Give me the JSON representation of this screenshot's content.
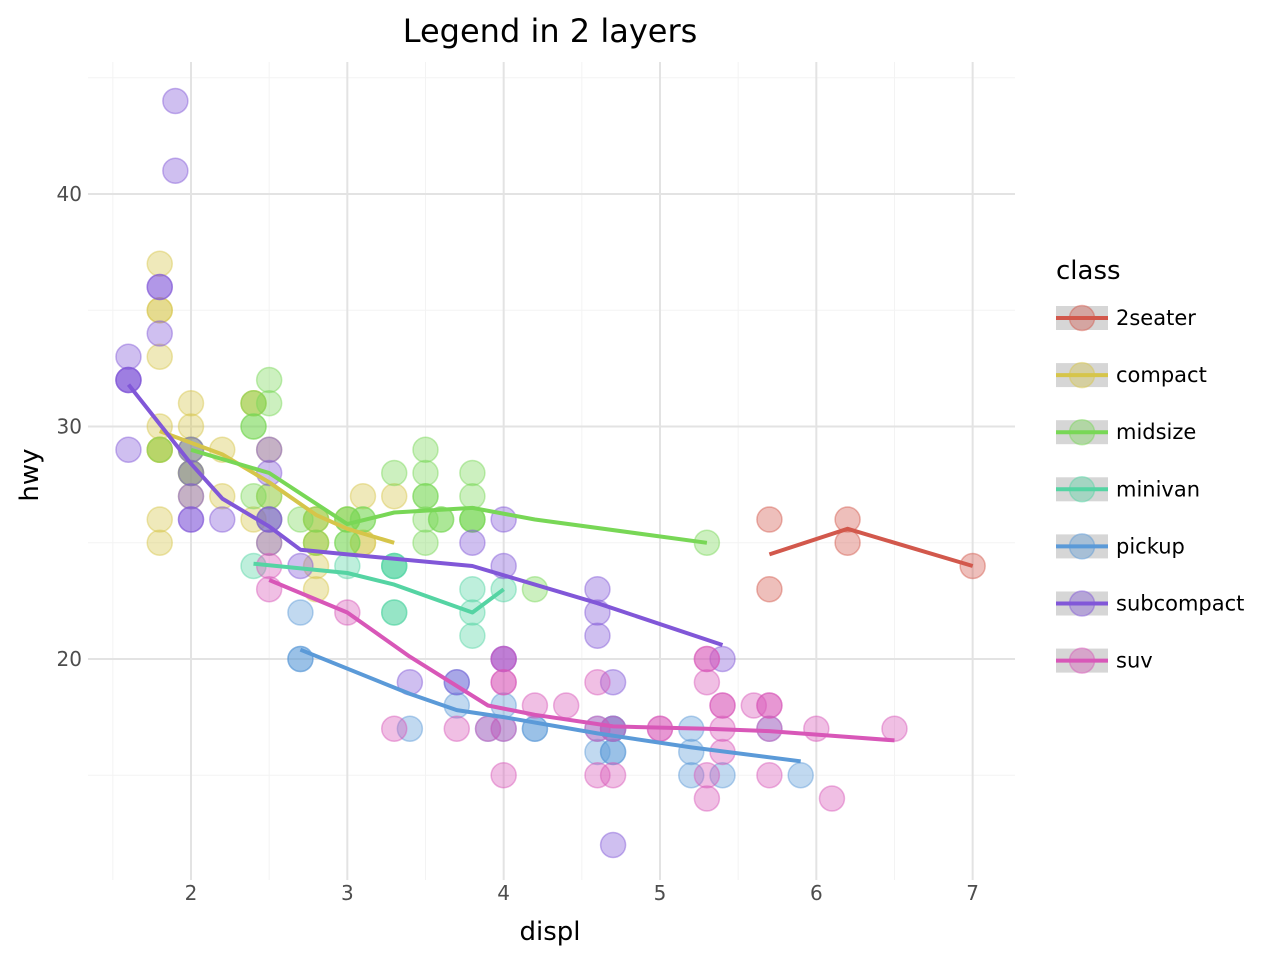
{
  "chart_data": {
    "type": "scatter",
    "title": "Legend in 2 layers",
    "xlabel": "displ",
    "ylabel": "hwy",
    "xlim": [
      1.4,
      7.3
    ],
    "ylim": [
      10.5,
      45.5
    ],
    "x_ticks": [
      2,
      3,
      4,
      5,
      6,
      7
    ],
    "y_ticks": [
      20,
      30,
      40
    ],
    "grid": true,
    "legend_title": "class",
    "legend_placement": "right",
    "series": [
      {
        "name": "2seater",
        "color": "#d2584c",
        "points": [
          [
            5.7,
            26
          ],
          [
            5.7,
            23
          ],
          [
            6.2,
            26
          ],
          [
            6.2,
            25
          ],
          [
            7.0,
            24
          ]
        ],
        "trend": [
          [
            5.7,
            24.5
          ],
          [
            6.2,
            25.6
          ],
          [
            7.0,
            24.0
          ]
        ]
      },
      {
        "name": "compact",
        "color": "#d6c54a",
        "points": [
          [
            1.8,
            29
          ],
          [
            1.8,
            29
          ],
          [
            2.0,
            31
          ],
          [
            2.0,
            30
          ],
          [
            2.8,
            26
          ],
          [
            2.8,
            26
          ],
          [
            3.1,
            27
          ],
          [
            1.8,
            26
          ],
          [
            1.8,
            25
          ],
          [
            2.0,
            28
          ],
          [
            2.0,
            27
          ],
          [
            2.8,
            25
          ],
          [
            2.8,
            25
          ],
          [
            3.1,
            25
          ],
          [
            3.1,
            25
          ],
          [
            2.2,
            29
          ],
          [
            2.2,
            27
          ],
          [
            2.4,
            31
          ],
          [
            2.4,
            31
          ],
          [
            3.0,
            26
          ],
          [
            3.3,
            27
          ],
          [
            1.8,
            29
          ],
          [
            1.8,
            30
          ],
          [
            1.8,
            33
          ],
          [
            1.8,
            35
          ],
          [
            1.8,
            37
          ],
          [
            1.8,
            35
          ],
          [
            2.5,
            29
          ],
          [
            2.5,
            27
          ],
          [
            2.5,
            25
          ],
          [
            2.8,
            24
          ],
          [
            2.8,
            23
          ],
          [
            2.0,
            29
          ],
          [
            2.0,
            28
          ],
          [
            2.4,
            26
          ]
        ],
        "trend": [
          [
            1.8,
            29.8
          ],
          [
            2.2,
            28.8
          ],
          [
            2.5,
            27.6
          ],
          [
            2.8,
            26.2
          ],
          [
            3.0,
            25.6
          ],
          [
            3.3,
            25.0
          ]
        ]
      },
      {
        "name": "midsize",
        "color": "#78d756",
        "points": [
          [
            2.4,
            27
          ],
          [
            2.4,
            30
          ],
          [
            3.1,
            26
          ],
          [
            3.5,
            29
          ],
          [
            3.6,
            26
          ],
          [
            1.8,
            29
          ],
          [
            2.0,
            28
          ],
          [
            2.0,
            29
          ],
          [
            2.5,
            26
          ],
          [
            2.5,
            32
          ],
          [
            2.5,
            31
          ],
          [
            2.8,
            26
          ],
          [
            3.0,
            26
          ],
          [
            3.0,
            25
          ],
          [
            3.3,
            28
          ],
          [
            3.5,
            27
          ],
          [
            3.5,
            26
          ],
          [
            3.8,
            26
          ],
          [
            3.8,
            28
          ],
          [
            4.2,
            23
          ],
          [
            5.3,
            25
          ],
          [
            2.4,
            31
          ],
          [
            2.8,
            25
          ],
          [
            3.1,
            26
          ],
          [
            3.5,
            25
          ],
          [
            3.8,
            27
          ],
          [
            3.8,
            26
          ],
          [
            3.5,
            28
          ],
          [
            3.6,
            26
          ],
          [
            3.8,
            26
          ],
          [
            2.4,
            30
          ],
          [
            2.7,
            26
          ],
          [
            3.0,
            26
          ],
          [
            3.5,
            27
          ],
          [
            3.0,
            25
          ],
          [
            2.5,
            27
          ]
        ],
        "trend": [
          [
            2.0,
            29.0
          ],
          [
            2.5,
            28.0
          ],
          [
            3.0,
            25.8
          ],
          [
            3.3,
            26.3
          ],
          [
            3.8,
            26.5
          ],
          [
            4.2,
            26.0
          ],
          [
            5.3,
            25.0
          ]
        ]
      },
      {
        "name": "minivan",
        "color": "#55d4a3",
        "points": [
          [
            2.4,
            24
          ],
          [
            3.0,
            24
          ],
          [
            3.3,
            22
          ],
          [
            3.3,
            22
          ],
          [
            3.3,
            24
          ],
          [
            3.3,
            24
          ],
          [
            3.3,
            24
          ],
          [
            3.8,
            22
          ],
          [
            3.8,
            21
          ],
          [
            3.8,
            23
          ],
          [
            4.0,
            23
          ]
        ],
        "trend": [
          [
            2.4,
            24.1
          ],
          [
            3.0,
            23.7
          ],
          [
            3.3,
            23.2
          ],
          [
            3.8,
            22.0
          ],
          [
            4.0,
            23.0
          ]
        ]
      },
      {
        "name": "pickup",
        "color": "#5b9ad8",
        "points": [
          [
            2.7,
            20
          ],
          [
            2.7,
            20
          ],
          [
            2.7,
            22
          ],
          [
            3.4,
            17
          ],
          [
            3.7,
            18
          ],
          [
            3.9,
            17
          ],
          [
            4.0,
            18
          ],
          [
            4.2,
            17
          ],
          [
            4.2,
            17
          ],
          [
            4.6,
            16
          ],
          [
            4.6,
            17
          ],
          [
            4.7,
            17
          ],
          [
            4.7,
            16
          ],
          [
            4.7,
            16
          ],
          [
            5.2,
            15
          ],
          [
            5.2,
            16
          ],
          [
            5.2,
            17
          ],
          [
            5.4,
            15
          ],
          [
            5.7,
            17
          ],
          [
            5.9,
            15
          ],
          [
            4.7,
            17
          ],
          [
            4.7,
            17
          ],
          [
            4.0,
            17
          ],
          [
            3.7,
            19
          ]
        ],
        "trend": [
          [
            2.7,
            20.4
          ],
          [
            3.4,
            18.5
          ],
          [
            3.7,
            17.8
          ],
          [
            4.0,
            17.5
          ],
          [
            4.6,
            16.8
          ],
          [
            5.2,
            16.2
          ],
          [
            5.9,
            15.6
          ]
        ]
      },
      {
        "name": "subcompact",
        "color": "#8157d8",
        "points": [
          [
            1.6,
            33
          ],
          [
            1.6,
            32
          ],
          [
            1.6,
            32
          ],
          [
            1.6,
            29
          ],
          [
            1.6,
            32
          ],
          [
            1.8,
            34
          ],
          [
            1.8,
            36
          ],
          [
            1.8,
            36
          ],
          [
            2.0,
            29
          ],
          [
            2.0,
            26
          ],
          [
            2.0,
            27
          ],
          [
            2.0,
            26
          ],
          [
            2.2,
            26
          ],
          [
            2.5,
            26
          ],
          [
            2.5,
            28
          ],
          [
            2.5,
            29
          ],
          [
            2.7,
            24
          ],
          [
            3.4,
            19
          ],
          [
            3.8,
            25
          ],
          [
            4.0,
            24
          ],
          [
            4.0,
            26
          ],
          [
            4.6,
            23
          ],
          [
            4.6,
            22
          ],
          [
            4.6,
            21
          ],
          [
            5.4,
            20
          ],
          [
            1.9,
            44
          ],
          [
            1.9,
            41
          ],
          [
            2.5,
            26
          ],
          [
            2.0,
            28
          ],
          [
            2.5,
            25
          ],
          [
            4.0,
            20
          ],
          [
            4.0,
            20
          ],
          [
            4.7,
            19
          ],
          [
            3.7,
            19
          ],
          [
            4.7,
            12
          ]
        ],
        "trend": [
          [
            1.6,
            31.8
          ],
          [
            2.0,
            28.4
          ],
          [
            2.2,
            26.9
          ],
          [
            2.5,
            25.7
          ],
          [
            2.7,
            24.7
          ],
          [
            3.0,
            24.5
          ],
          [
            3.8,
            24.0
          ],
          [
            4.6,
            22.4
          ],
          [
            5.4,
            20.6
          ]
        ]
      },
      {
        "name": "suv",
        "color": "#d857b8",
        "points": [
          [
            2.5,
            24
          ],
          [
            2.5,
            23
          ],
          [
            3.0,
            22
          ],
          [
            3.3,
            17
          ],
          [
            3.7,
            17
          ],
          [
            3.9,
            17
          ],
          [
            4.0,
            19
          ],
          [
            4.0,
            17
          ],
          [
            4.0,
            15
          ],
          [
            4.0,
            19
          ],
          [
            4.2,
            18
          ],
          [
            4.4,
            18
          ],
          [
            4.6,
            19
          ],
          [
            4.6,
            17
          ],
          [
            4.6,
            15
          ],
          [
            4.7,
            17
          ],
          [
            4.7,
            15
          ],
          [
            5.0,
            17
          ],
          [
            5.0,
            17
          ],
          [
            5.3,
            20
          ],
          [
            5.3,
            19
          ],
          [
            5.3,
            15
          ],
          [
            5.3,
            14
          ],
          [
            5.3,
            20
          ],
          [
            5.4,
            18
          ],
          [
            5.4,
            17
          ],
          [
            5.4,
            16
          ],
          [
            5.4,
            18
          ],
          [
            5.6,
            18
          ],
          [
            5.7,
            18
          ],
          [
            5.7,
            17
          ],
          [
            5.7,
            18
          ],
          [
            5.7,
            15
          ],
          [
            6.0,
            17
          ],
          [
            6.1,
            14
          ],
          [
            6.5,
            17
          ],
          [
            4.0,
            20
          ]
        ],
        "trend": [
          [
            2.5,
            23.4
          ],
          [
            3.0,
            22.0
          ],
          [
            3.4,
            20.1
          ],
          [
            3.9,
            18.0
          ],
          [
            4.2,
            17.6
          ],
          [
            4.7,
            17.1
          ],
          [
            5.3,
            17.0
          ],
          [
            5.7,
            16.9
          ],
          [
            6.1,
            16.7
          ],
          [
            6.5,
            16.5
          ]
        ]
      }
    ]
  }
}
